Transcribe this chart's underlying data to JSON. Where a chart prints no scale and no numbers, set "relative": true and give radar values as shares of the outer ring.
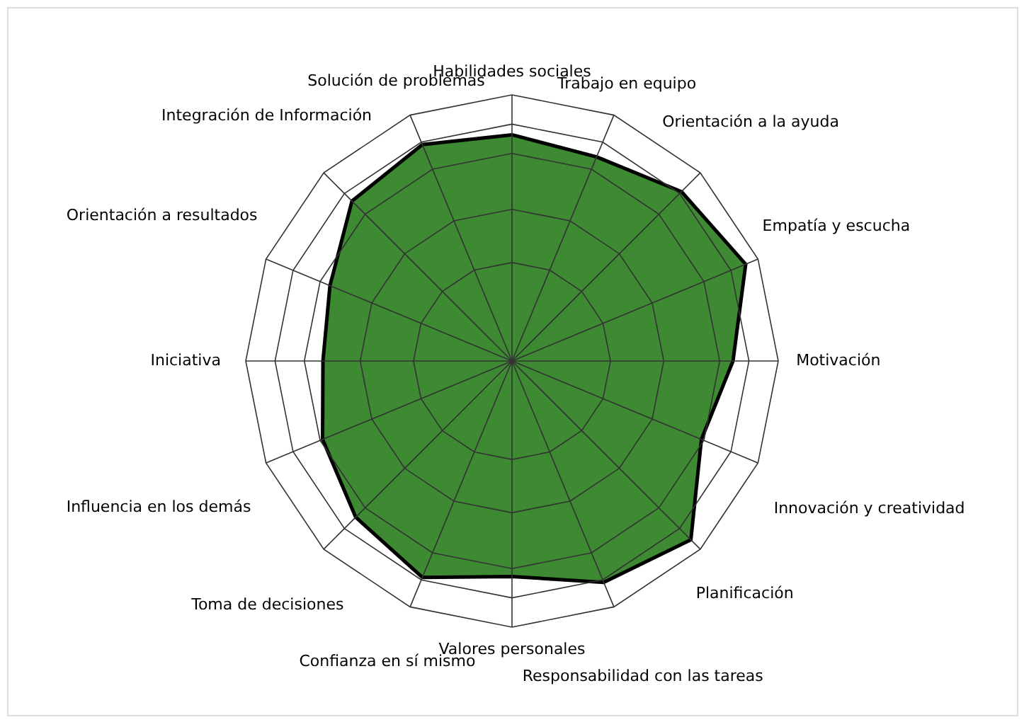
{
  "chart_data": {
    "type": "radar",
    "relative": true,
    "grid": true,
    "categories": [
      "Habilidades sociales",
      "Trabajo en equipo",
      "Orientación a la ayuda",
      "Empatía y escucha",
      "Motivación",
      "Innovación y creatividad",
      "Planificación",
      "Responsabilidad con las tareas",
      "Valores personales",
      "Confianza en sí mismo",
      "Toma de decisiones",
      "Influencia en los demás",
      "Iniciativa",
      "Orientación a resultados",
      "Integración de Información",
      "Solución de problemas"
    ],
    "series": [
      {
        "color": "#3d8a33",
        "values": [
          0.85,
          0.83,
          0.9,
          0.95,
          0.83,
          0.77,
          0.95,
          0.9,
          0.81,
          0.88,
          0.83,
          0.77,
          0.71,
          0.74,
          0.85,
          0.88
        ]
      }
    ]
  }
}
